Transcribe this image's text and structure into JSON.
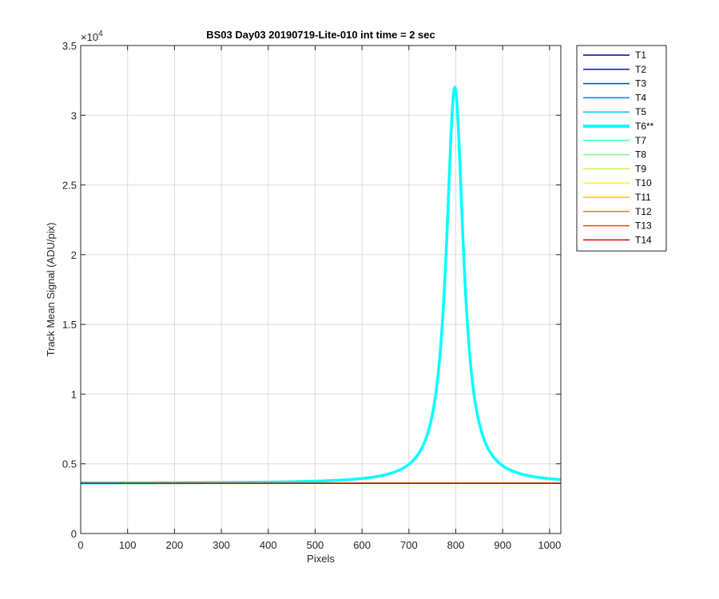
{
  "chart_data": {
    "type": "line",
    "title": "BS03 Day03 20190719-Lite-010 int time = 2 sec",
    "xlabel": "Pixels",
    "ylabel": "Track Mean Signal (ADU/pix)",
    "xlim": [
      0,
      1024
    ],
    "ylim": [
      0,
      35000
    ],
    "y_exponent_label": "×10",
    "y_exponent_power": "4",
    "xticks": [
      0,
      100,
      200,
      300,
      400,
      500,
      600,
      700,
      800,
      900,
      1000
    ],
    "xtick_labels": [
      "0",
      "100",
      "200",
      "300",
      "400",
      "500",
      "600",
      "700",
      "800",
      "900",
      "1000"
    ],
    "yticks": [
      0,
      5000,
      10000,
      15000,
      20000,
      25000,
      30000,
      35000
    ],
    "ytick_labels": [
      "0",
      "0.5",
      "1",
      "1.5",
      "2",
      "2.5",
      "3",
      "3.5"
    ],
    "grid": true,
    "legend_position": "outside-right",
    "baseline": 3600,
    "series": [
      {
        "name": "T1",
        "color": "#0000a0",
        "highlight": false
      },
      {
        "name": "T2",
        "color": "#0010d0",
        "highlight": false
      },
      {
        "name": "T3",
        "color": "#0040f0",
        "highlight": false
      },
      {
        "name": "T4",
        "color": "#0080ff",
        "highlight": false
      },
      {
        "name": "T5",
        "color": "#00c0ff",
        "highlight": false
      },
      {
        "name": "T6**",
        "color": "#00ffff",
        "highlight": true,
        "peak": {
          "x": 798,
          "y": 32000,
          "halfwidth": 22
        }
      },
      {
        "name": "T7",
        "color": "#40ffc0",
        "highlight": false
      },
      {
        "name": "T8",
        "color": "#80ff80",
        "highlight": false
      },
      {
        "name": "T9",
        "color": "#c0ff40",
        "highlight": false
      },
      {
        "name": "T10",
        "color": "#ffff00",
        "highlight": false
      },
      {
        "name": "T11",
        "color": "#ffc000",
        "highlight": false
      },
      {
        "name": "T12",
        "color": "#ff8000",
        "highlight": false
      },
      {
        "name": "T13",
        "color": "#ff4000",
        "highlight": false
      },
      {
        "name": "T14",
        "color": "#e00000",
        "highlight": false
      }
    ]
  }
}
